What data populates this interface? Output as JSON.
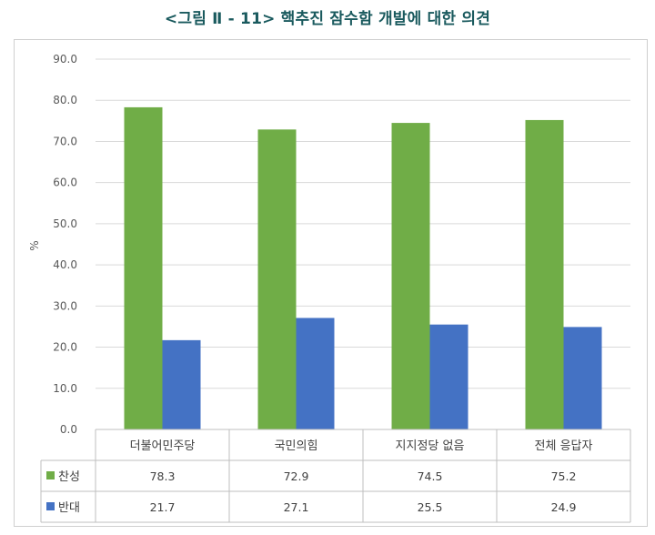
{
  "figure_title": "<그림 Ⅱ - 11> 핵추진 잠수함 개발에 대한 의견",
  "chart_data": {
    "type": "bar",
    "title": "<그림 Ⅱ - 11> 핵추진 잠수함 개발에 대한 의견",
    "ylabel": "%",
    "xlabel": "",
    "ylim": [
      0,
      90
    ],
    "yticks": [
      "0.0",
      "10.0",
      "20.0",
      "30.0",
      "40.0",
      "50.0",
      "60.0",
      "70.0",
      "80.0",
      "90.0"
    ],
    "grid": true,
    "legend": "data-table",
    "categories": [
      "더불어민주당",
      "국민의힘",
      "지지정당 없음",
      "전체 응답자"
    ],
    "series": [
      {
        "name": "찬성",
        "color": "#70ad47",
        "values": [
          78.3,
          72.9,
          74.5,
          75.2
        ],
        "labels": [
          "78.3",
          "72.9",
          "74.5",
          "75.2"
        ]
      },
      {
        "name": "반대",
        "color": "#4472c4",
        "values": [
          21.7,
          27.1,
          25.5,
          24.9
        ],
        "labels": [
          "21.7",
          "27.1",
          "25.5",
          "24.9"
        ]
      }
    ]
  }
}
